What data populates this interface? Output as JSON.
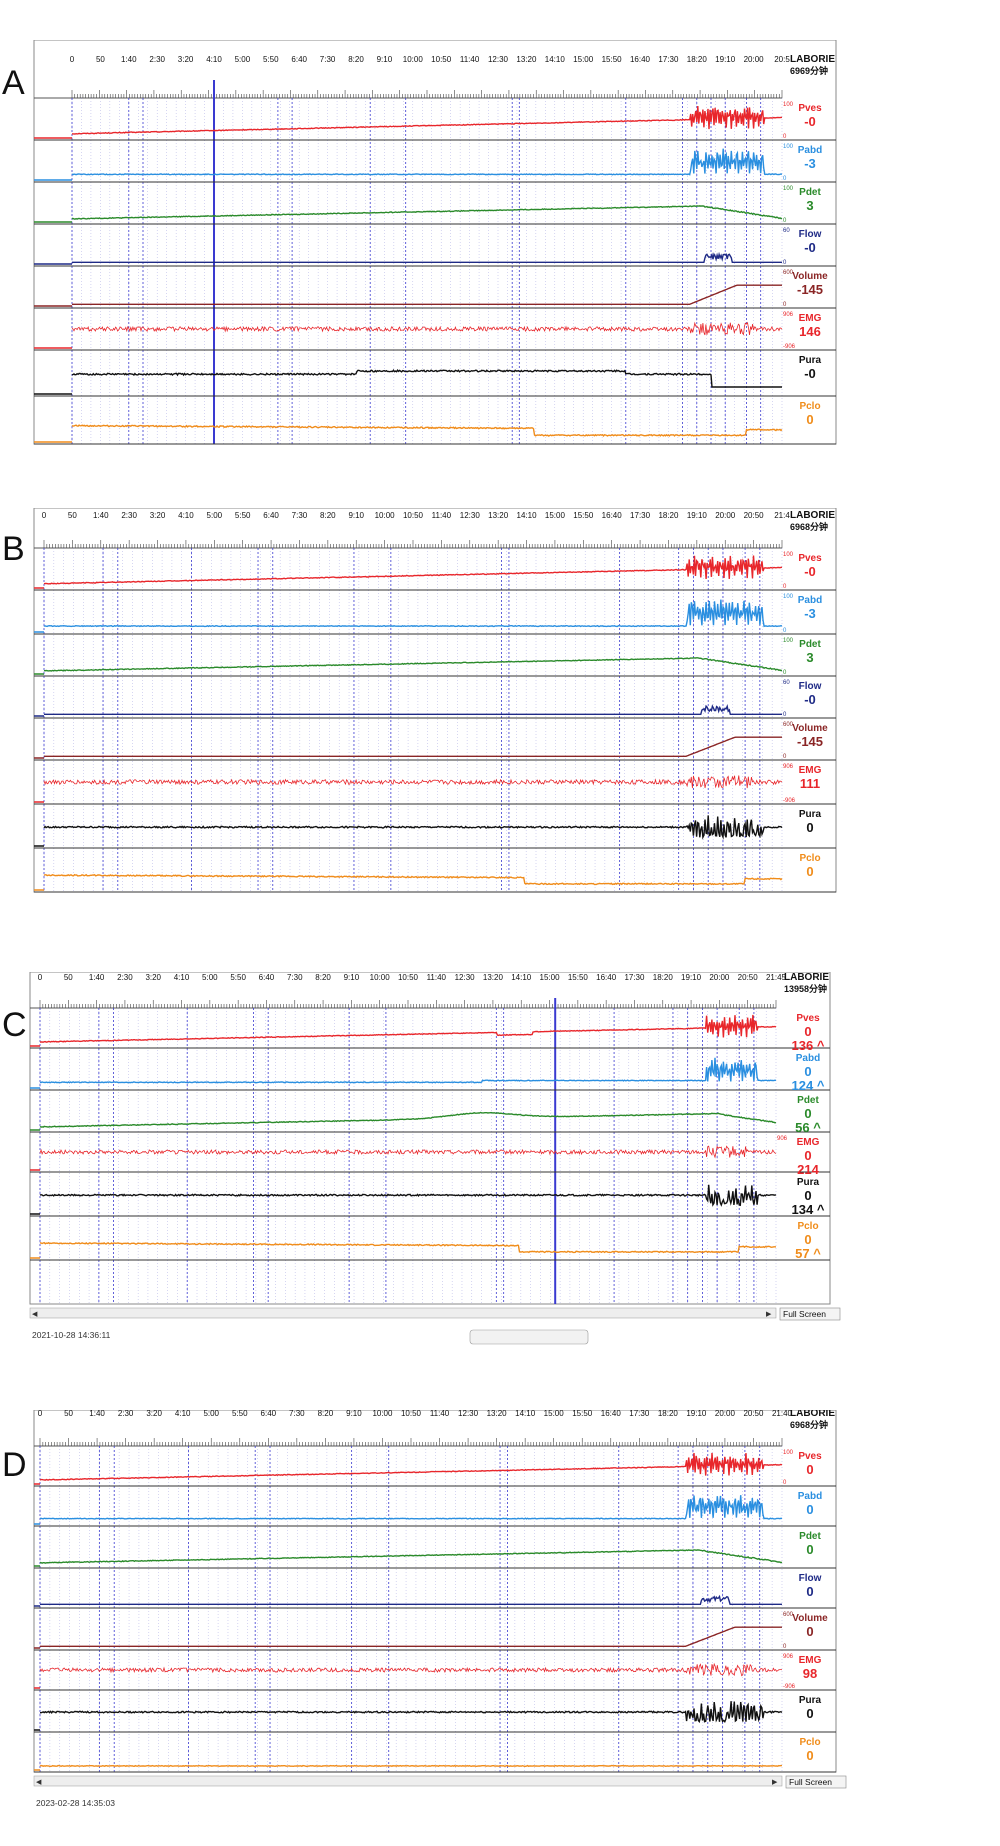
{
  "time_labels_full": [
    "0",
    "50",
    "1:40",
    "2:30",
    "3:20",
    "4:10",
    "5:00",
    "5:50",
    "6:40",
    "7:30",
    "8:20",
    "9:10",
    "10:00",
    "10:50",
    "11:40",
    "12:30",
    "13:20",
    "14:10",
    "15:00",
    "15:50",
    "16:40",
    "17:30",
    "18:20",
    "19:10",
    "20:00",
    "20:50",
    "21:40"
  ],
  "colors": {
    "Pves": "#e8262b",
    "Pabd": "#2a8fe0",
    "Pdet": "#2a8a2a",
    "Flow": "#1e2a86",
    "Volume": "#8a2525",
    "EMG": "#e8262b",
    "Pura": "#111111",
    "Pclo": "#f08c1a",
    "grid": "#8a8ad8",
    "marker": "#3a3ad0"
  },
  "panels": [
    {
      "label": "A",
      "device": "LABORIE",
      "duration": "6969分钟",
      "time_labels": [
        "0",
        "50",
        "1:40",
        "2:30",
        "3:20",
        "4:10",
        "5:00",
        "5:50",
        "6:40",
        "7:30",
        "8:20",
        "9:10",
        "10:00",
        "10:50",
        "11:40",
        "12:30",
        "13:20",
        "14:10",
        "15:00",
        "15:50",
        "16:40",
        "17:30",
        "18:20",
        "19:10",
        "20:00",
        "20:5"
      ],
      "status": "",
      "channels": [
        {
          "name": "Pves",
          "values": [
            "-0"
          ],
          "scale": [
            "100",
            "0"
          ]
        },
        {
          "name": "Pabd",
          "values": [
            "-3"
          ],
          "scale": [
            "100",
            "0"
          ]
        },
        {
          "name": "Pdet",
          "values": [
            "3"
          ],
          "scale": [
            "100",
            "0"
          ]
        },
        {
          "name": "Flow",
          "values": [
            "-0"
          ],
          "scale": [
            "60",
            "0"
          ]
        },
        {
          "name": "Volume",
          "values": [
            "-145"
          ],
          "scale": [
            "600",
            "0"
          ]
        },
        {
          "name": "EMG",
          "values": [
            "146"
          ],
          "scale": [
            "906",
            "-906"
          ]
        },
        {
          "name": "Pura",
          "values": [
            "-0"
          ],
          "scale": [
            "",
            ""
          ]
        },
        {
          "name": "Pclo",
          "values": [
            "0"
          ],
          "scale": [
            "",
            ""
          ]
        }
      ]
    },
    {
      "label": "B",
      "device": "LABORIE",
      "duration": "6968分钟",
      "time_labels": [
        "0",
        "50",
        "1:40",
        "2:30",
        "3:20",
        "4:10",
        "5:00",
        "5:50",
        "6:40",
        "7:30",
        "8:20",
        "9:10",
        "10:00",
        "10:50",
        "11:40",
        "12:30",
        "13:20",
        "14:10",
        "15:00",
        "15:50",
        "16:40",
        "17:30",
        "18:20",
        "19:10",
        "20:00",
        "20:50",
        "21:4"
      ],
      "status": "",
      "channels": [
        {
          "name": "Pves",
          "values": [
            "-0"
          ],
          "scale": [
            "100",
            "0"
          ]
        },
        {
          "name": "Pabd",
          "values": [
            "-3"
          ],
          "scale": [
            "100",
            "0"
          ]
        },
        {
          "name": "Pdet",
          "values": [
            "3"
          ],
          "scale": [
            "100",
            "0"
          ]
        },
        {
          "name": "Flow",
          "values": [
            "-0"
          ],
          "scale": [
            "60",
            "0"
          ]
        },
        {
          "name": "Volume",
          "values": [
            "-145"
          ],
          "scale": [
            "600",
            "0"
          ]
        },
        {
          "name": "EMG",
          "values": [
            "111"
          ],
          "scale": [
            "906",
            "-906"
          ]
        },
        {
          "name": "Pura",
          "values": [
            "0"
          ],
          "scale": [
            "",
            ""
          ]
        },
        {
          "name": "Pclo",
          "values": [
            "0"
          ],
          "scale": [
            "",
            ""
          ]
        }
      ]
    },
    {
      "label": "C",
      "device": "LABORIE",
      "duration": "13958分钟",
      "time_labels": [
        "0",
        "50",
        "1:40",
        "2:30",
        "3:20",
        "4:10",
        "5:00",
        "5:50",
        "6:40",
        "7:30",
        "8:20",
        "9:10",
        "10:00",
        "10:50",
        "11:40",
        "12:30",
        "13:20",
        "14:10",
        "15:00",
        "15:50",
        "16:40",
        "17:30",
        "18:20",
        "19:10",
        "20:00",
        "20:50",
        "21:45"
      ],
      "status": "2021-10-28 14:36:11",
      "full_screen": "Full Screen",
      "channels": [
        {
          "name": "Pves",
          "values": [
            "0",
            "136 ^"
          ],
          "scale": [
            "",
            ""
          ]
        },
        {
          "name": "Pabd",
          "values": [
            "0",
            "124 ^"
          ],
          "scale": [
            "",
            ""
          ]
        },
        {
          "name": "Pdet",
          "values": [
            "0",
            "56 ^"
          ],
          "scale": [
            "",
            ""
          ]
        },
        {
          "name": "EMG",
          "values": [
            "0",
            "214"
          ],
          "scale": [
            "906",
            ""
          ]
        },
        {
          "name": "Pura",
          "values": [
            "0",
            "134 ^"
          ],
          "scale": [
            "",
            ""
          ]
        },
        {
          "name": "Pclo",
          "values": [
            "0",
            "57 ^"
          ],
          "scale": [
            "",
            ""
          ]
        }
      ]
    },
    {
      "label": "D",
      "device": "LABORIE",
      "duration": "6968分钟",
      "time_labels": [
        "0",
        "50",
        "1:40",
        "2:30",
        "3:20",
        "4:10",
        "5:00",
        "5:50",
        "6:40",
        "7:30",
        "8:20",
        "9:10",
        "10:00",
        "10:50",
        "11:40",
        "12:30",
        "13:20",
        "14:10",
        "15:00",
        "15:50",
        "16:40",
        "17:30",
        "18:20",
        "19:10",
        "20:00",
        "20:50",
        "21:40"
      ],
      "status": "2023-02-28 14:35:03",
      "full_screen": "Full Screen",
      "channels": [
        {
          "name": "Pves",
          "values": [
            "0"
          ],
          "scale": [
            "100",
            "0"
          ]
        },
        {
          "name": "Pabd",
          "values": [
            "0"
          ],
          "scale": [
            "",
            ""
          ]
        },
        {
          "name": "Pdet",
          "values": [
            "0"
          ],
          "scale": [
            "",
            ""
          ]
        },
        {
          "name": "Flow",
          "values": [
            "0"
          ],
          "scale": [
            "",
            ""
          ]
        },
        {
          "name": "Volume",
          "values": [
            "0"
          ],
          "scale": [
            "600",
            "0"
          ]
        },
        {
          "name": "EMG",
          "values": [
            "98"
          ],
          "scale": [
            "906",
            "-906"
          ]
        },
        {
          "name": "Pura",
          "values": [
            "0"
          ],
          "scale": [
            "",
            ""
          ]
        },
        {
          "name": "Pclo",
          "values": [
            "0"
          ],
          "scale": [
            "",
            ""
          ]
        }
      ]
    }
  ],
  "chart_data": [
    {
      "type": "line",
      "title": "",
      "xlabel": "",
      "ylabel": "",
      "series": []
    }
  ]
}
